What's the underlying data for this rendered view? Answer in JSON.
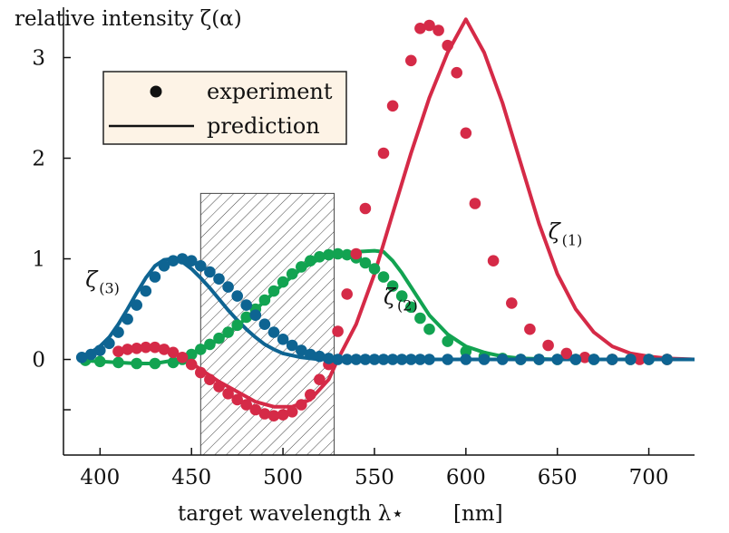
{
  "chart_data": {
    "type": "scatter",
    "title": "",
    "ylabel": "relative intensity ζ(α)",
    "xlabel": "target wavelength λ⋆",
    "xunit": "[nm]",
    "xlim": [
      380,
      725
    ],
    "ylim": [
      -0.95,
      3.5
    ],
    "xticks": [
      400,
      450,
      500,
      550,
      600,
      650,
      700
    ],
    "yticks": [
      -0.5,
      0,
      1,
      2,
      3
    ],
    "ytick_labels": [
      "",
      "0",
      "1",
      "2",
      "3"
    ],
    "hatched_region": [
      455,
      528
    ],
    "legend": {
      "position": "top-left",
      "background": "#fdf3e6",
      "entries": [
        {
          "marker": "dot",
          "label": "experiment"
        },
        {
          "marker": "line",
          "label": "prediction"
        }
      ]
    },
    "series": [
      {
        "name": "ζ(1)",
        "label_main": "ζ",
        "label_sub": "(1)",
        "color": "#d52a47",
        "prediction": [
          [
            408,
            0.07
          ],
          [
            415,
            0.09
          ],
          [
            425,
            0.11
          ],
          [
            435,
            0.1
          ],
          [
            445,
            0.03
          ],
          [
            455,
            -0.1
          ],
          [
            465,
            -0.22
          ],
          [
            475,
            -0.32
          ],
          [
            485,
            -0.42
          ],
          [
            495,
            -0.47
          ],
          [
            505,
            -0.47
          ],
          [
            515,
            -0.4
          ],
          [
            525,
            -0.2
          ],
          [
            530,
            0.0
          ],
          [
            540,
            0.35
          ],
          [
            550,
            0.85
          ],
          [
            560,
            1.45
          ],
          [
            570,
            2.05
          ],
          [
            580,
            2.6
          ],
          [
            590,
            3.05
          ],
          [
            600,
            3.38
          ],
          [
            610,
            3.05
          ],
          [
            620,
            2.55
          ],
          [
            630,
            1.95
          ],
          [
            640,
            1.35
          ],
          [
            650,
            0.85
          ],
          [
            660,
            0.5
          ],
          [
            670,
            0.27
          ],
          [
            680,
            0.13
          ],
          [
            690,
            0.06
          ],
          [
            700,
            0.03
          ],
          [
            710,
            0.01
          ],
          [
            725,
            0.0
          ]
        ],
        "experiment": [
          [
            410,
            0.08
          ],
          [
            415,
            0.1
          ],
          [
            420,
            0.11
          ],
          [
            425,
            0.12
          ],
          [
            430,
            0.12
          ],
          [
            435,
            0.1
          ],
          [
            440,
            0.07
          ],
          [
            445,
            0.02
          ],
          [
            450,
            -0.05
          ],
          [
            455,
            -0.13
          ],
          [
            460,
            -0.2
          ],
          [
            465,
            -0.27
          ],
          [
            470,
            -0.34
          ],
          [
            475,
            -0.4
          ],
          [
            480,
            -0.45
          ],
          [
            485,
            -0.5
          ],
          [
            490,
            -0.54
          ],
          [
            495,
            -0.56
          ],
          [
            500,
            -0.55
          ],
          [
            505,
            -0.52
          ],
          [
            510,
            -0.45
          ],
          [
            515,
            -0.35
          ],
          [
            520,
            -0.2
          ],
          [
            525,
            -0.05
          ],
          [
            530,
            0.28
          ],
          [
            535,
            0.65
          ],
          [
            540,
            1.05
          ],
          [
            545,
            1.5
          ],
          [
            555,
            2.05
          ],
          [
            560,
            2.52
          ],
          [
            570,
            2.97
          ],
          [
            575,
            3.29
          ],
          [
            580,
            3.32
          ],
          [
            585,
            3.27
          ],
          [
            590,
            3.12
          ],
          [
            595,
            2.85
          ],
          [
            600,
            2.25
          ],
          [
            605,
            1.55
          ],
          [
            615,
            0.98
          ],
          [
            625,
            0.56
          ],
          [
            635,
            0.3
          ],
          [
            645,
            0.14
          ],
          [
            655,
            0.06
          ],
          [
            665,
            0.02
          ],
          [
            680,
            0.0
          ],
          [
            695,
            0.0
          ],
          [
            710,
            0.0
          ]
        ]
      },
      {
        "name": "ζ(2)",
        "label_main": "ζ",
        "label_sub": "(2)",
        "color": "#12a351",
        "prediction": [
          [
            390,
            -0.01
          ],
          [
            400,
            -0.02
          ],
          [
            410,
            -0.03
          ],
          [
            420,
            -0.04
          ],
          [
            430,
            -0.04
          ],
          [
            440,
            -0.01
          ],
          [
            450,
            0.05
          ],
          [
            460,
            0.14
          ],
          [
            470,
            0.26
          ],
          [
            480,
            0.41
          ],
          [
            490,
            0.58
          ],
          [
            500,
            0.75
          ],
          [
            510,
            0.9
          ],
          [
            520,
            1.0
          ],
          [
            530,
            1.05
          ],
          [
            540,
            1.07
          ],
          [
            550,
            1.08
          ],
          [
            555,
            1.07
          ],
          [
            560,
            0.98
          ],
          [
            565,
            0.86
          ],
          [
            570,
            0.72
          ],
          [
            575,
            0.58
          ],
          [
            580,
            0.44
          ],
          [
            590,
            0.25
          ],
          [
            600,
            0.13
          ],
          [
            610,
            0.07
          ],
          [
            620,
            0.03
          ],
          [
            630,
            0.01
          ],
          [
            650,
            0.0
          ],
          [
            700,
            0.0
          ],
          [
            725,
            0.0
          ]
        ],
        "experiment": [
          [
            392,
            -0.01
          ],
          [
            400,
            -0.02
          ],
          [
            410,
            -0.03
          ],
          [
            420,
            -0.04
          ],
          [
            430,
            -0.04
          ],
          [
            440,
            -0.03
          ],
          [
            445,
            0.0
          ],
          [
            450,
            0.05
          ],
          [
            455,
            0.1
          ],
          [
            460,
            0.15
          ],
          [
            465,
            0.21
          ],
          [
            470,
            0.27
          ],
          [
            475,
            0.34
          ],
          [
            480,
            0.42
          ],
          [
            485,
            0.5
          ],
          [
            490,
            0.59
          ],
          [
            495,
            0.68
          ],
          [
            500,
            0.77
          ],
          [
            505,
            0.85
          ],
          [
            510,
            0.92
          ],
          [
            515,
            0.98
          ],
          [
            520,
            1.02
          ],
          [
            525,
            1.04
          ],
          [
            530,
            1.05
          ],
          [
            535,
            1.04
          ],
          [
            540,
            1.01
          ],
          [
            545,
            0.96
          ],
          [
            550,
            0.9
          ],
          [
            555,
            0.82
          ],
          [
            560,
            0.73
          ],
          [
            565,
            0.63
          ],
          [
            570,
            0.52
          ],
          [
            575,
            0.41
          ],
          [
            580,
            0.3
          ],
          [
            590,
            0.18
          ],
          [
            600,
            0.08
          ],
          [
            610,
            0.03
          ],
          [
            620,
            0.01
          ],
          [
            630,
            0.0
          ],
          [
            640,
            0.0
          ],
          [
            650,
            0.0
          ],
          [
            660,
            0.0
          ],
          [
            670,
            0.0
          ],
          [
            680,
            0.0
          ],
          [
            690,
            0.0
          ],
          [
            700,
            0.0
          ],
          [
            710,
            0.0
          ]
        ]
      },
      {
        "name": "ζ(3)",
        "label_main": "ζ",
        "label_sub": "(3)",
        "color": "#0e6492",
        "prediction": [
          [
            390,
            0.03
          ],
          [
            395,
            0.07
          ],
          [
            400,
            0.13
          ],
          [
            405,
            0.22
          ],
          [
            410,
            0.35
          ],
          [
            415,
            0.5
          ],
          [
            420,
            0.66
          ],
          [
            425,
            0.81
          ],
          [
            430,
            0.93
          ],
          [
            435,
            0.99
          ],
          [
            440,
            1.0
          ],
          [
            445,
            0.97
          ],
          [
            450,
            0.9
          ],
          [
            455,
            0.81
          ],
          [
            460,
            0.71
          ],
          [
            465,
            0.6
          ],
          [
            470,
            0.49
          ],
          [
            475,
            0.39
          ],
          [
            480,
            0.3
          ],
          [
            485,
            0.22
          ],
          [
            490,
            0.15
          ],
          [
            495,
            0.1
          ],
          [
            500,
            0.06
          ],
          [
            510,
            0.02
          ],
          [
            520,
            0.0
          ],
          [
            530,
            0.0
          ],
          [
            560,
            0.0
          ],
          [
            600,
            0.0
          ],
          [
            650,
            0.0
          ],
          [
            700,
            0.0
          ],
          [
            725,
            0.0
          ]
        ],
        "experiment": [
          [
            390,
            0.02
          ],
          [
            395,
            0.05
          ],
          [
            400,
            0.09
          ],
          [
            405,
            0.16
          ],
          [
            410,
            0.27
          ],
          [
            415,
            0.4
          ],
          [
            420,
            0.54
          ],
          [
            425,
            0.68
          ],
          [
            430,
            0.82
          ],
          [
            435,
            0.93
          ],
          [
            440,
            0.98
          ],
          [
            445,
            1.0
          ],
          [
            450,
            0.98
          ],
          [
            455,
            0.93
          ],
          [
            460,
            0.87
          ],
          [
            465,
            0.8
          ],
          [
            470,
            0.72
          ],
          [
            475,
            0.63
          ],
          [
            480,
            0.54
          ],
          [
            485,
            0.44
          ],
          [
            490,
            0.35
          ],
          [
            495,
            0.27
          ],
          [
            500,
            0.2
          ],
          [
            505,
            0.14
          ],
          [
            510,
            0.09
          ],
          [
            515,
            0.05
          ],
          [
            520,
            0.03
          ],
          [
            525,
            0.01
          ],
          [
            530,
            0.0
          ],
          [
            535,
            0.0
          ],
          [
            540,
            0.0
          ],
          [
            545,
            0.0
          ],
          [
            550,
            0.0
          ],
          [
            555,
            0.0
          ],
          [
            560,
            0.0
          ],
          [
            565,
            0.0
          ],
          [
            570,
            0.0
          ],
          [
            575,
            0.0
          ],
          [
            580,
            0.0
          ],
          [
            590,
            0.0
          ],
          [
            600,
            0.0
          ],
          [
            610,
            0.0
          ],
          [
            620,
            0.0
          ],
          [
            630,
            0.0
          ],
          [
            640,
            0.0
          ],
          [
            650,
            0.0
          ],
          [
            660,
            0.0
          ],
          [
            670,
            0.0
          ],
          [
            680,
            0.0
          ],
          [
            690,
            0.0
          ],
          [
            700,
            0.0
          ],
          [
            710,
            0.0
          ]
        ]
      }
    ]
  }
}
